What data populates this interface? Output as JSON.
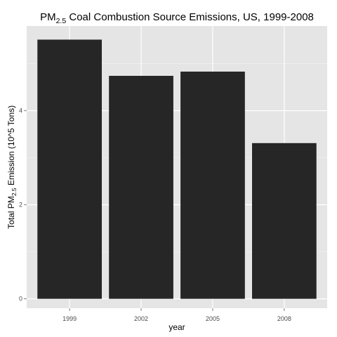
{
  "chart_data": {
    "type": "bar",
    "title": {
      "prefix": "PM",
      "subscript": "2.5",
      "suffix": " Coal Combustion Source Emissions, US, 1999-2008"
    },
    "xlabel": "year",
    "ylabel": {
      "prefix": "Total PM",
      "subscript": "2.5",
      "suffix": " Emission (10^5 Tons)"
    },
    "categories": [
      "1999",
      "2002",
      "2005",
      "2008"
    ],
    "values": [
      5.51,
      4.74,
      4.83,
      3.31
    ],
    "ylim": [
      -0.2,
      5.8
    ],
    "yticks": [
      0,
      2,
      4
    ],
    "ytick_labels": [
      "0",
      "2",
      "4"
    ],
    "grid": true,
    "legend": "none",
    "colors": {
      "panel_bg": "#e5e5e5",
      "grid_major": "#ffffff",
      "grid_minor": "#f2f2f2",
      "bar_fill": "#262626",
      "tick_text": "#4d4d4d",
      "label_text": "#000000"
    }
  }
}
